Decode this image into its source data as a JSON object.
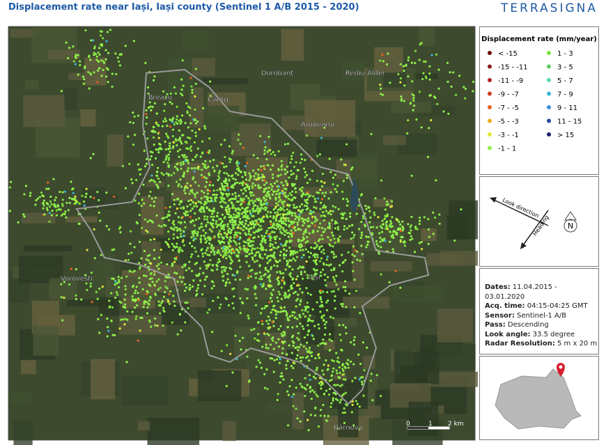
{
  "header": {
    "title": "Displacement rate near Iași, Iași county (Sentinel 1 A/B 2015 - 2020)",
    "logo": "TERRASIGNA"
  },
  "map": {
    "place_labels": [
      "Dorobanț",
      "Rediu Aldei",
      "Breazu",
      "Cârlig",
      "Aroneanu",
      "Vorovești",
      "Iași",
      "Bârnova"
    ],
    "scale_labels": [
      "0",
      "1",
      "2 km"
    ]
  },
  "legend": {
    "title": "Displacement rate (mm/year)",
    "items": [
      {
        "label": "< -15",
        "color": "#6b0a0a"
      },
      {
        "label": "-15  -  -11",
        "color": "#8e1a1a"
      },
      {
        "label": "-11  -  -9",
        "color": "#b32020"
      },
      {
        "label": "-9  -  -7",
        "color": "#d23c1e"
      },
      {
        "label": "-7  -  -5",
        "color": "#e8641e"
      },
      {
        "label": "-5  -  -3",
        "color": "#f0a81e"
      },
      {
        "label": "-3  -  -1",
        "color": "#e6e63c"
      },
      {
        "label": "-1  -  1",
        "color": "#8ef04a"
      },
      {
        "label": "1  -  3",
        "color": "#7ee03c"
      },
      {
        "label": "3  -  5",
        "color": "#5ccc64"
      },
      {
        "label": "5  -  7",
        "color": "#5cd2b4"
      },
      {
        "label": "7  -  9",
        "color": "#3cb4d2"
      },
      {
        "label": "9  -  11",
        "color": "#3c8ce0"
      },
      {
        "label": "11  -  15",
        "color": "#2846a0"
      },
      {
        "label": "> 15",
        "color": "#1e1e6e"
      }
    ]
  },
  "orientation": {
    "look_direction": "Look direction",
    "heading": "Heading",
    "north": "N"
  },
  "info": [
    {
      "label": "Dates:",
      "value": "11.04.2015 - 03.01.2020"
    },
    {
      "label": "Acq. time:",
      "value": "04:15-04:25 GMT"
    },
    {
      "label": "Sensor:",
      "value": "Sentinel-1 A/B"
    },
    {
      "label": "Pass:",
      "value": "Descending"
    },
    {
      "label": "Look angle:",
      "value": "33.5 degree"
    },
    {
      "label": "Radar Resolution:",
      "value": "5 m x 20 m"
    }
  ]
}
